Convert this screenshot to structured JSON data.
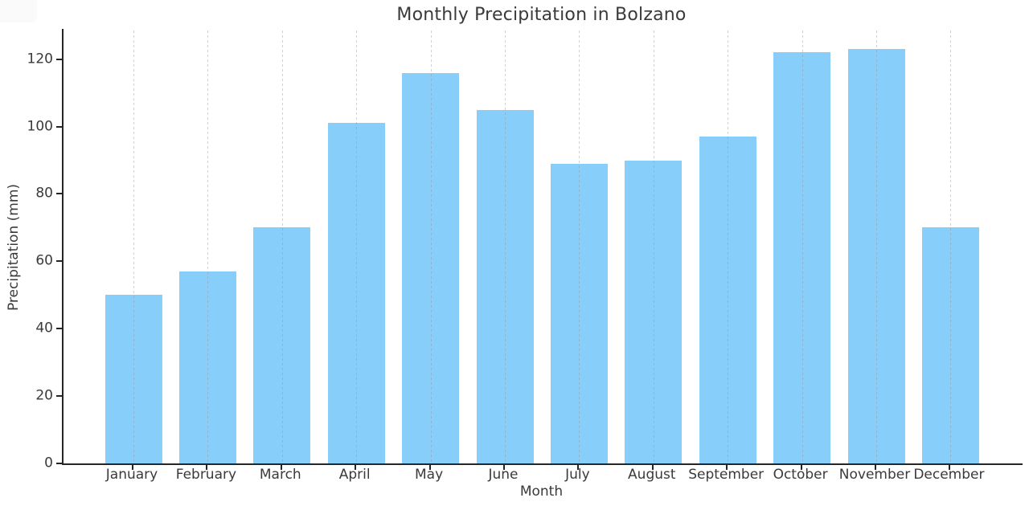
{
  "chart_data": {
    "type": "bar",
    "title": "Monthly Precipitation in Bolzano",
    "xlabel": "Month",
    "ylabel": "Precipitation (mm)",
    "categories": [
      "January",
      "February",
      "March",
      "April",
      "May",
      "June",
      "July",
      "August",
      "September",
      "October",
      "November",
      "December"
    ],
    "values": [
      50,
      57,
      70,
      101,
      116,
      105,
      89,
      90,
      97,
      122,
      123,
      70
    ],
    "ylim": [
      0,
      129
    ],
    "yticks": [
      0,
      20,
      40,
      60,
      80,
      100,
      120
    ],
    "legend": "none",
    "grid": "vertical-dashed",
    "bar_color": "#87CEFA",
    "gridline_color": "#c9c9c9",
    "axis_color": "#262626",
    "text_color": "#3a3a3a",
    "background_color": "#ffffff"
  }
}
